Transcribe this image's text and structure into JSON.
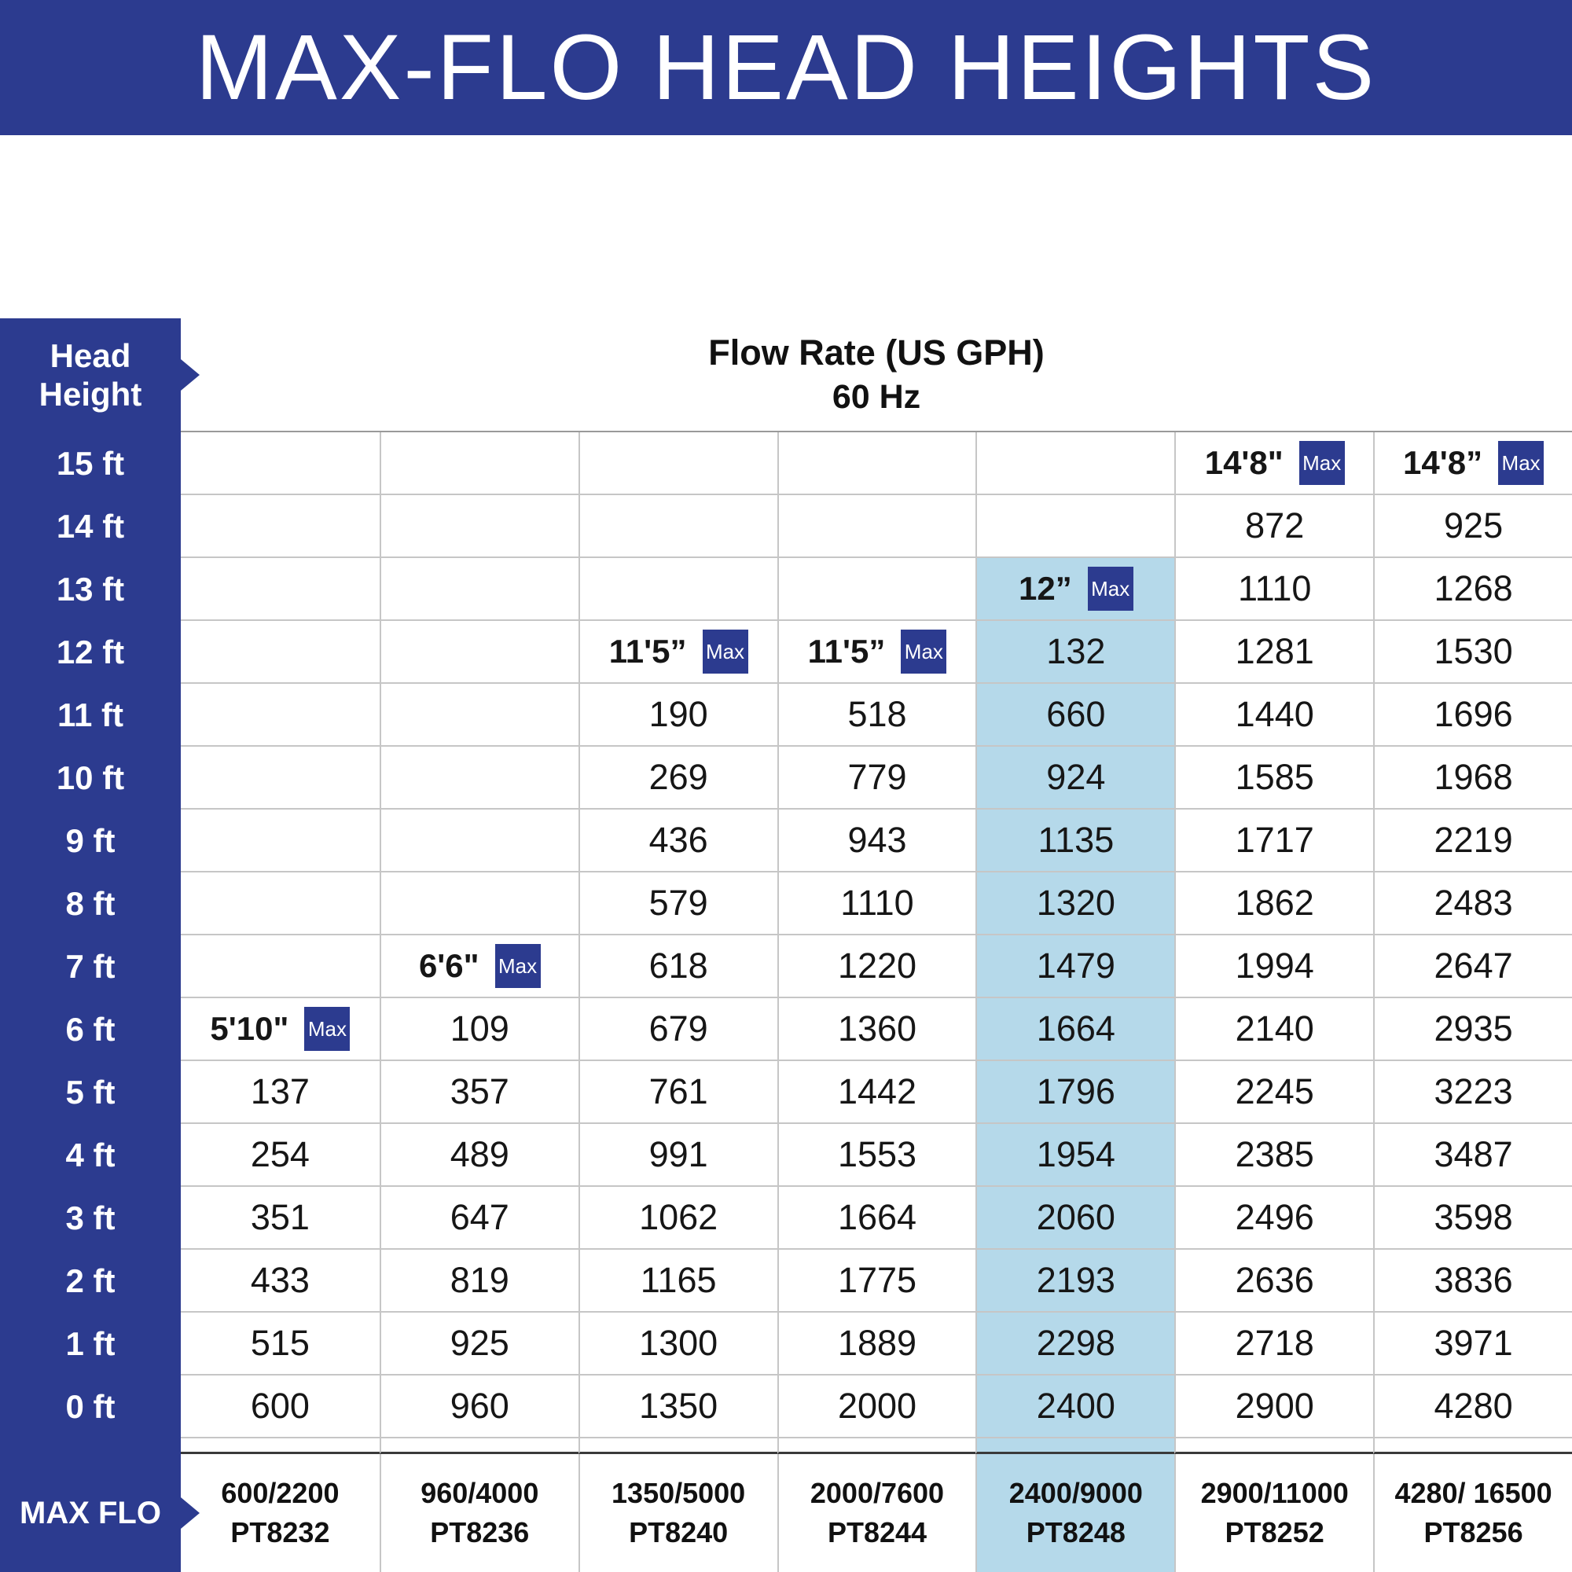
{
  "title": "MAX-FLO HEAD HEIGHTS",
  "colors": {
    "primary_blue": "#2c3b8f",
    "highlight_blue": "#b5d9ea"
  },
  "chart_data": {
    "type": "table",
    "title": "MAX-FLO HEAD HEIGHTS",
    "header": "Flow Rate (US GPH)",
    "subheader": "60 Hz",
    "corner": {
      "line1": "Head",
      "line2": "Height"
    },
    "footer_label": "MAX FLO",
    "max_badge": "Max",
    "categories": [
      "15 ft",
      "14 ft",
      "13 ft",
      "12 ft",
      "11 ft",
      "10 ft",
      "9 ft",
      "8 ft",
      "7 ft",
      "6 ft",
      "5 ft",
      "4 ft",
      "3 ft",
      "2 ft",
      "1 ft",
      "0 ft"
    ],
    "series": [
      {
        "model": "PT8232",
        "max_flo": "600/2200",
        "max_head_label": "5'10\"",
        "max_row_index": 9,
        "highlighted": false,
        "values": [
          null,
          null,
          null,
          null,
          null,
          null,
          null,
          null,
          null,
          null,
          137,
          254,
          351,
          433,
          515,
          600
        ]
      },
      {
        "model": "PT8236",
        "max_flo": "960/4000",
        "max_head_label": "6'6\"",
        "max_row_index": 8,
        "highlighted": false,
        "values": [
          null,
          null,
          null,
          null,
          null,
          null,
          null,
          null,
          null,
          109,
          357,
          489,
          647,
          819,
          925,
          960
        ]
      },
      {
        "model": "PT8240",
        "max_flo": "1350/5000",
        "max_head_label": "11'5”",
        "max_row_index": 3,
        "highlighted": false,
        "values": [
          null,
          null,
          null,
          null,
          190,
          269,
          436,
          579,
          618,
          679,
          761,
          991,
          1062,
          1165,
          1300,
          1350
        ]
      },
      {
        "model": "PT8244",
        "max_flo": "2000/7600",
        "max_head_label": "11'5”",
        "max_row_index": 3,
        "highlighted": false,
        "values": [
          null,
          null,
          null,
          null,
          518,
          779,
          943,
          1110,
          1220,
          1360,
          1442,
          1553,
          1664,
          1775,
          1889,
          2000
        ]
      },
      {
        "model": "PT8248",
        "max_flo": "2400/9000",
        "max_head_label": "12”",
        "max_row_index": 2,
        "highlighted": true,
        "highlight_from": 2,
        "values": [
          null,
          null,
          null,
          132,
          660,
          924,
          1135,
          1320,
          1479,
          1664,
          1796,
          1954,
          2060,
          2193,
          2298,
          2400
        ]
      },
      {
        "model": "PT8252",
        "max_flo": "2900/11000",
        "max_head_label": "14'8\"",
        "max_row_index": 0,
        "highlighted": false,
        "values": [
          null,
          872,
          1110,
          1281,
          1440,
          1585,
          1717,
          1862,
          1994,
          2140,
          2245,
          2385,
          2496,
          2636,
          2718,
          2900
        ]
      },
      {
        "model": "PT8256",
        "max_flo": "4280/ 16500",
        "max_head_label": "14'8”",
        "max_row_index": 0,
        "highlighted": false,
        "values": [
          null,
          925,
          1268,
          1530,
          1696,
          1968,
          2219,
          2483,
          2647,
          2935,
          3223,
          3487,
          3598,
          3836,
          3971,
          4280
        ]
      }
    ]
  }
}
